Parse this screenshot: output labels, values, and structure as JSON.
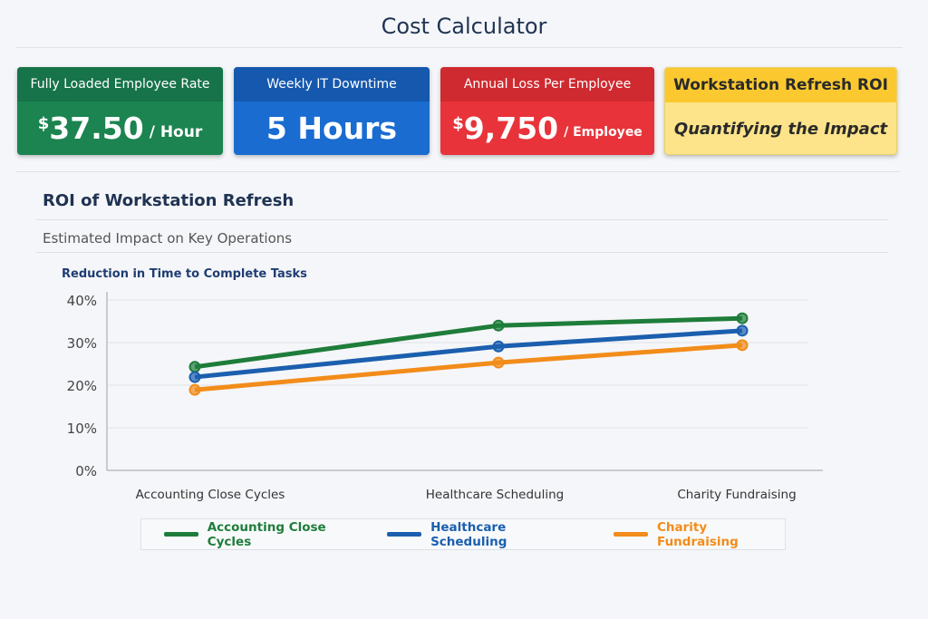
{
  "header": {
    "title": "Cost Calculator"
  },
  "cards": [
    {
      "label": "Fully Loaded Employee Rate",
      "currency": "$",
      "value": "37.50",
      "unit": "/ Hour",
      "color": "#1b7f4a"
    },
    {
      "label": "Weekly IT Downtime",
      "currency": "",
      "value": "5 Hours",
      "unit": "",
      "color": "#1565c0"
    },
    {
      "label": "Annual Loss Per Employee",
      "currency": "$",
      "value": "9,750",
      "unit": "/ Employee",
      "color": "#d9282f"
    },
    {
      "label": "Workstation Refresh ROI",
      "value": "Quantifying the Impact",
      "color": "#fbd34d"
    }
  ],
  "section": {
    "title": "ROI of Workstation Refresh",
    "subtitle": "Estimated Impact on Key Operations"
  },
  "chart_data": {
    "type": "line",
    "title": "Reduction in Time to Complete Tasks",
    "categories": [
      "Accounting Close Cycles",
      "Healthcare Scheduling",
      "Charity Fundraising"
    ],
    "ylim": [
      0,
      40
    ],
    "yticks": [
      "0%",
      "10%",
      "20%",
      "30%",
      "40%"
    ],
    "grid": true,
    "legend": "bottom",
    "series": [
      {
        "name": "Accounting Close Cycles",
        "color": "#1e7d3a",
        "values": [
          24.3,
          34.0,
          35.7
        ]
      },
      {
        "name": "Healthcare Scheduling",
        "color": "#1b5fae",
        "values": [
          21.9,
          29.1,
          32.8
        ]
      },
      {
        "name": "Charity Fundraising",
        "color": "#f28c1a",
        "values": [
          18.9,
          25.3,
          29.4
        ]
      }
    ]
  }
}
